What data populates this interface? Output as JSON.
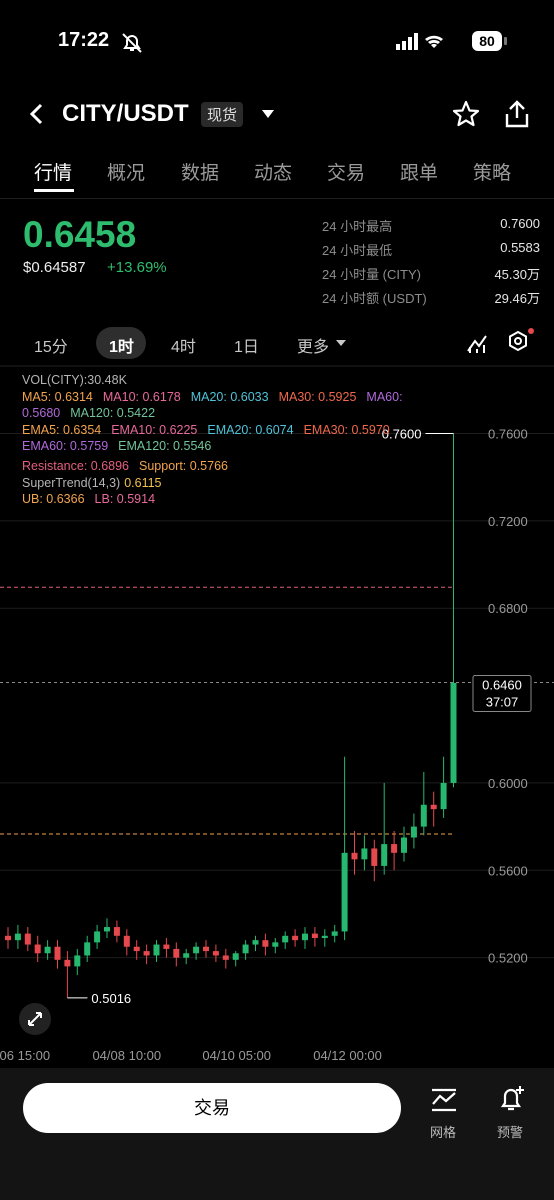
{
  "status_bar": {
    "time": "17:22",
    "battery": "80"
  },
  "header": {
    "pair": "CITY/USDT",
    "market": "现货"
  },
  "tabs": [
    "行情",
    "概况",
    "数据",
    "动态",
    "交易",
    "跟单",
    "策略"
  ],
  "price": {
    "last": "0.6458",
    "usd": "$0.64587",
    "change": "+13.69%"
  },
  "stats": [
    {
      "label": "24 小时最高",
      "value": "0.7600"
    },
    {
      "label": "24 小时最低",
      "value": "0.5583"
    },
    {
      "label": "24 小时量 (CITY)",
      "value": "45.30万"
    },
    {
      "label": "24 小时额 (USDT)",
      "value": "29.46万"
    }
  ],
  "intervals": [
    "15分",
    "1时",
    "4时",
    "1日",
    "更多"
  ],
  "chart_data": {
    "type": "candlestick",
    "indicator_rows": [
      [
        {
          "text": "VOL(CITY):30.48K",
          "color": "#b5b5b5"
        }
      ],
      [
        {
          "text": "MA5: 0.6314",
          "color": "#f2a34e"
        },
        {
          "text": "MA10: 0.6178",
          "color": "#e8699b"
        },
        {
          "text": "MA20: 0.6033",
          "color": "#4fc3d9"
        },
        {
          "text": "MA30: 0.5925",
          "color": "#f0694c"
        },
        {
          "text": "MA60:",
          "color": "#b06ad9"
        }
      ],
      [
        {
          "text": "0.5680",
          "color": "#b06ad9"
        },
        {
          "text": "MA120: 0.5422",
          "color": "#72c49b"
        }
      ],
      [
        {
          "text": "EMA5: 0.6354",
          "color": "#f2a34e"
        },
        {
          "text": "EMA10: 0.6225",
          "color": "#e8699b"
        },
        {
          "text": "EMA20: 0.6074",
          "color": "#4fc3d9"
        },
        {
          "text": "EMA30: 0.5970",
          "color": "#f0694c"
        }
      ],
      [
        {
          "text": "EMA60: 0.5759",
          "color": "#b06ad9"
        },
        {
          "text": "EMA120: 0.5546",
          "color": "#72c49b"
        }
      ],
      [
        {
          "text": "Resistance: 0.6896",
          "value": 0.6896,
          "color": "#e0607e"
        },
        {
          "text": "Support: 0.5766",
          "value": 0.5766,
          "color": "#f2a34e"
        }
      ],
      [
        {
          "text": "SuperTrend(14,3)",
          "color": "#b5b5b5"
        },
        {
          "text": "0.6115",
          "color": "#f2c14e"
        }
      ],
      [
        {
          "text": "UB: 0.6366",
          "color": "#f2a34e"
        },
        {
          "text": "LB: 0.5914",
          "color": "#e8699b"
        }
      ]
    ],
    "up_color": "#27b86f",
    "down_color": "#e5484d",
    "open": [
      0.53,
      0.528,
      0.531,
      0.526,
      0.522,
      0.525,
      0.519,
      0.516,
      0.521,
      0.527,
      0.532,
      0.534,
      0.53,
      0.525,
      0.523,
      0.521,
      0.526,
      0.524,
      0.52,
      0.522,
      0.525,
      0.523,
      0.521,
      0.519,
      0.522,
      0.526,
      0.528,
      0.525,
      0.527,
      0.53,
      0.528,
      0.531,
      0.529,
      0.53,
      0.532,
      0.568,
      0.565,
      0.57,
      0.562,
      0.572,
      0.568,
      0.575,
      0.58,
      0.59,
      0.588,
      0.6
    ],
    "high": [
      0.534,
      0.535,
      0.534,
      0.53,
      0.528,
      0.528,
      0.523,
      0.524,
      0.53,
      0.535,
      0.538,
      0.537,
      0.533,
      0.528,
      0.526,
      0.528,
      0.529,
      0.527,
      0.524,
      0.527,
      0.528,
      0.526,
      0.524,
      0.523,
      0.528,
      0.53,
      0.531,
      0.529,
      0.532,
      0.533,
      0.534,
      0.534,
      0.533,
      0.535,
      0.612,
      0.578,
      0.576,
      0.574,
      0.6,
      0.578,
      0.58,
      0.586,
      0.605,
      0.596,
      0.612,
      0.76
    ],
    "low": [
      0.524,
      0.524,
      0.523,
      0.518,
      0.519,
      0.515,
      0.5016,
      0.512,
      0.518,
      0.524,
      0.529,
      0.527,
      0.521,
      0.519,
      0.517,
      0.518,
      0.52,
      0.516,
      0.517,
      0.519,
      0.52,
      0.518,
      0.515,
      0.516,
      0.519,
      0.523,
      0.521,
      0.522,
      0.524,
      0.525,
      0.524,
      0.525,
      0.525,
      0.527,
      0.528,
      0.558,
      0.56,
      0.555,
      0.558,
      0.56,
      0.564,
      0.57,
      0.576,
      0.58,
      0.584,
      0.598
    ],
    "close": [
      0.528,
      0.531,
      0.526,
      0.522,
      0.525,
      0.519,
      0.516,
      0.521,
      0.527,
      0.532,
      0.534,
      0.53,
      0.525,
      0.523,
      0.521,
      0.526,
      0.524,
      0.52,
      0.522,
      0.525,
      0.523,
      0.521,
      0.519,
      0.522,
      0.526,
      0.528,
      0.525,
      0.527,
      0.53,
      0.528,
      0.531,
      0.529,
      0.53,
      0.532,
      0.568,
      0.565,
      0.57,
      0.562,
      0.572,
      0.568,
      0.575,
      0.58,
      0.59,
      0.588,
      0.6,
      0.6458
    ],
    "high_label": {
      "value": 0.76,
      "label": "0.7600"
    },
    "low_label": {
      "value": 0.5016,
      "label": "0.5016"
    },
    "current": {
      "value": 0.646,
      "label": "0.6460",
      "countdown": "37:07"
    },
    "ylim": [
      0.48,
      0.79
    ],
    "yticks": [
      {
        "value": 0.52,
        "label": "0.5200"
      },
      {
        "value": 0.56,
        "label": "0.5600"
      },
      {
        "value": 0.6,
        "label": "0.6000"
      },
      {
        "value": 0.68,
        "label": "0.6800"
      },
      {
        "value": 0.72,
        "label": "0.7200"
      },
      {
        "value": 0.76,
        "label": "0.7600"
      }
    ],
    "xticks": [
      {
        "value": 1.7,
        "label": "06 15:00"
      },
      {
        "value": 12,
        "label": "04/08 10:00"
      },
      {
        "value": 23.1,
        "label": "04/10 05:00"
      },
      {
        "value": 34.3,
        "label": "04/12 00:00"
      }
    ],
    "grid": true
  },
  "bottom_bar": {
    "trade": "交易",
    "grid": "网格",
    "alert": "预警"
  }
}
